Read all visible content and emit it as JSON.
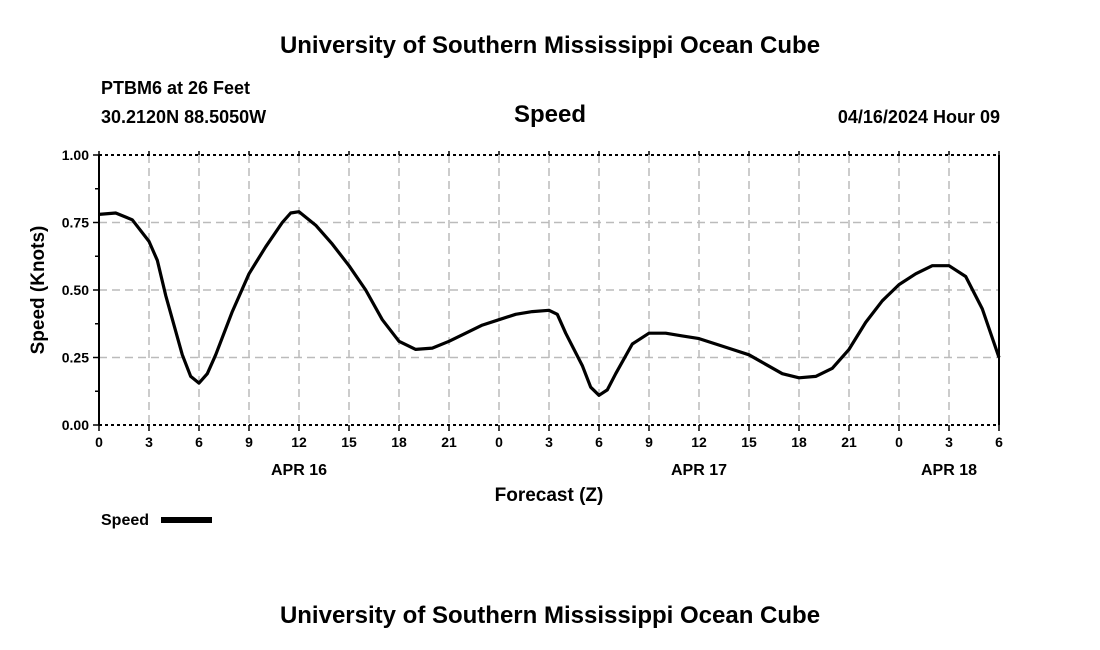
{
  "header": {
    "title": "University of Southern Mississippi Ocean Cube",
    "station": "PTBM6 at 26 Feet",
    "location": "30.2120N  88.5050W",
    "datetime": "04/16/2024 Hour 09"
  },
  "footer": {
    "title": "University of Southern Mississippi Ocean Cube"
  },
  "chart_data": {
    "type": "line",
    "title": "Speed",
    "xlabel": "Forecast (Z)",
    "ylabel": "Speed (Knots)",
    "ylim": [
      0,
      1
    ],
    "xlim": [
      0,
      54
    ],
    "grid": true,
    "yticks": [
      "0.00",
      "0.25",
      "0.50",
      "0.75",
      "1.00"
    ],
    "xtick_labels": [
      "0",
      "3",
      "6",
      "9",
      "12",
      "15",
      "18",
      "21",
      "0",
      "3",
      "6",
      "9",
      "12",
      "15",
      "18",
      "21",
      "0",
      "3",
      "6"
    ],
    "date_labels": [
      {
        "label": "APR 16",
        "hour": 12
      },
      {
        "label": "APR 17",
        "hour": 36
      },
      {
        "label": "APR 18",
        "hour": 51
      }
    ],
    "legend": {
      "label": "Speed",
      "placement": "bottom-left"
    },
    "series": [
      {
        "name": "Speed",
        "x": [
          0,
          1,
          2,
          3,
          3.5,
          4,
          5,
          5.5,
          6,
          6.5,
          7,
          8,
          9,
          10,
          11,
          11.5,
          12,
          13,
          14,
          15,
          16,
          17,
          18,
          19,
          20,
          21,
          22,
          23,
          24,
          25,
          26,
          27,
          27.5,
          28,
          29,
          29.5,
          30,
          30.5,
          31,
          32,
          33,
          34,
          35,
          36,
          37,
          38,
          39,
          40,
          41,
          42,
          43,
          44,
          45,
          46,
          47,
          48,
          49,
          50,
          51,
          52,
          53,
          54
        ],
        "values": [
          0.78,
          0.785,
          0.76,
          0.68,
          0.61,
          0.48,
          0.26,
          0.18,
          0.155,
          0.19,
          0.26,
          0.42,
          0.56,
          0.66,
          0.75,
          0.785,
          0.79,
          0.74,
          0.67,
          0.59,
          0.5,
          0.39,
          0.31,
          0.28,
          0.285,
          0.31,
          0.34,
          0.37,
          0.39,
          0.41,
          0.42,
          0.425,
          0.41,
          0.34,
          0.22,
          0.14,
          0.11,
          0.13,
          0.19,
          0.3,
          0.34,
          0.34,
          0.33,
          0.32,
          0.3,
          0.28,
          0.26,
          0.225,
          0.19,
          0.175,
          0.18,
          0.21,
          0.28,
          0.38,
          0.46,
          0.52,
          0.56,
          0.59,
          0.59,
          0.55,
          0.43,
          0.25
        ]
      }
    ]
  }
}
